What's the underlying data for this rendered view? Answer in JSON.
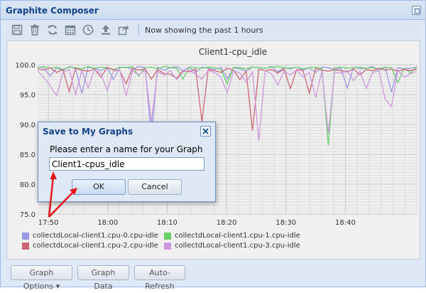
{
  "window": {
    "title": "Graphite Composer"
  },
  "toolbar": {
    "icons": [
      "save-icon",
      "trash-icon",
      "refresh-icon",
      "calendar-icon",
      "clock-icon",
      "upload-icon",
      "share-icon"
    ],
    "status_text": "Now showing the past 1 hours"
  },
  "chart_data": {
    "type": "line",
    "title": "Client1-cpu_idle",
    "xlabel": "",
    "ylabel": "",
    "ylim": [
      75.0,
      100.0
    ],
    "yticks": [
      "100.0",
      "95.0",
      "90.0",
      "85.0",
      "80.0",
      "75.0"
    ],
    "xticks": [
      "17:50",
      "18:00",
      "18:10",
      "18:20",
      "18:30",
      "18:40"
    ],
    "x": [
      0,
      1,
      2,
      3,
      4,
      5,
      6,
      7,
      8,
      9,
      10,
      11,
      12,
      13,
      14,
      15,
      16,
      17,
      18,
      19,
      20,
      21,
      22,
      23,
      24,
      25,
      26,
      27,
      28,
      29,
      30,
      31,
      32,
      33,
      34,
      35,
      36,
      37,
      38,
      39,
      40,
      41,
      42,
      43,
      44,
      45,
      46,
      47,
      48,
      49,
      50,
      51,
      52,
      53,
      54,
      55,
      56,
      57,
      58,
      59,
      60
    ],
    "grid": true,
    "legend_position": "bottom-left",
    "series": [
      {
        "name": "collectdLocal-client1.cpu-0.cpu-idle",
        "color": "#9999e6",
        "values": [
          99.6,
          99.4,
          98.1,
          99.5,
          99.0,
          99.7,
          99.3,
          95.2,
          99.6,
          99.4,
          99.0,
          99.6,
          97.5,
          99.5,
          99.6,
          99.2,
          99.7,
          99.5,
          88.0,
          99.6,
          99.1,
          99.5,
          99.7,
          99.0,
          99.6,
          98.7,
          99.6,
          99.4,
          99.2,
          99.6,
          97.6,
          99.5,
          99.3,
          98.9,
          99.6,
          99.5,
          99.4,
          99.7,
          98.8,
          99.5,
          99.3,
          99.6,
          99.1,
          99.5,
          98.7,
          99.6,
          99.5,
          99.2,
          99.4,
          96.1,
          99.6,
          99.3,
          99.4,
          99.7,
          99.0,
          99.6,
          95.4,
          99.5,
          99.3,
          99.4,
          99.6
        ]
      },
      {
        "name": "collectdLocal-client1.cpu-1.cpu-idle",
        "color": "#6ad16a",
        "values": [
          99.5,
          99.7,
          99.4,
          99.6,
          99.2,
          99.6,
          99.5,
          99.3,
          99.7,
          99.4,
          99.6,
          99.5,
          99.1,
          99.6,
          99.5,
          99.7,
          98.1,
          99.5,
          99.6,
          99.3,
          99.7,
          99.5,
          99.4,
          97.6,
          99.6,
          99.5,
          99.4,
          99.6,
          99.5,
          99.2,
          96.8,
          99.6,
          99.5,
          99.3,
          99.6,
          99.5,
          99.4,
          99.6,
          99.7,
          99.5,
          99.4,
          99.6,
          99.3,
          99.5,
          99.6,
          99.4,
          86.5,
          99.5,
          99.6,
          99.4,
          99.5,
          99.6,
          99.4,
          99.5,
          99.3,
          99.6,
          99.5,
          97.0,
          99.4,
          98.6,
          99.7
        ]
      },
      {
        "name": "collectdLocal-client1.cpu-2.cpu-idle",
        "color": "#cc6677",
        "values": [
          99.3,
          99.1,
          99.5,
          98.7,
          99.2,
          95.5,
          99.4,
          99.1,
          98.9,
          99.3,
          97.9,
          99.5,
          99.2,
          99.0,
          96.8,
          99.4,
          99.1,
          99.3,
          97.6,
          99.2,
          98.5,
          98.4,
          97.7,
          99.0,
          98.8,
          99.3,
          90.5,
          99.2,
          99.0,
          98.7,
          99.4,
          99.1,
          97.5,
          98.9,
          89.0,
          99.3,
          99.0,
          99.2,
          98.6,
          99.3,
          96.0,
          99.2,
          99.0,
          95.2,
          99.4,
          99.1,
          98.9,
          99.2,
          99.0,
          98.8,
          99.3,
          98.3,
          99.2,
          99.0,
          99.4,
          99.1,
          99.3,
          98.9,
          99.2,
          99.0,
          99.3
        ]
      },
      {
        "name": "collectdLocal-client1.cpu-3.cpu-idle",
        "color": "#cc99dd",
        "values": [
          99.0,
          97.8,
          96.5,
          94.8,
          98.7,
          99.2,
          95.0,
          99.0,
          96.1,
          99.2,
          98.5,
          95.7,
          98.9,
          99.1,
          94.8,
          99.0,
          98.3,
          99.1,
          90.5,
          98.9,
          98.2,
          99.0,
          97.5,
          98.8,
          99.1,
          98.4,
          97.6,
          99.0,
          98.7,
          97.9,
          95.3,
          99.0,
          98.6,
          97.1,
          98.8,
          87.3,
          99.0,
          98.5,
          96.6,
          98.9,
          98.3,
          99.1,
          97.9,
          98.7,
          94.5,
          99.0,
          88.5,
          98.8,
          98.6,
          99.0,
          97.3,
          98.9,
          96.0,
          98.7,
          99.0,
          94.2,
          93.0,
          99.1,
          97.9,
          98.5,
          98.9
        ]
      }
    ]
  },
  "buttons": {
    "graph_options": "Graph Options",
    "graph_data": "Graph Data",
    "auto_refresh": "Auto-Refresh"
  },
  "dialog": {
    "title": "Save to My Graphs",
    "message": "Please enter a name for your Graph",
    "input_value": "Client1-cpus_idle",
    "ok_label": "OK",
    "cancel_label": "Cancel"
  },
  "colors": {
    "title_blue": "#15428b",
    "annotation_red": "#e8141b"
  }
}
